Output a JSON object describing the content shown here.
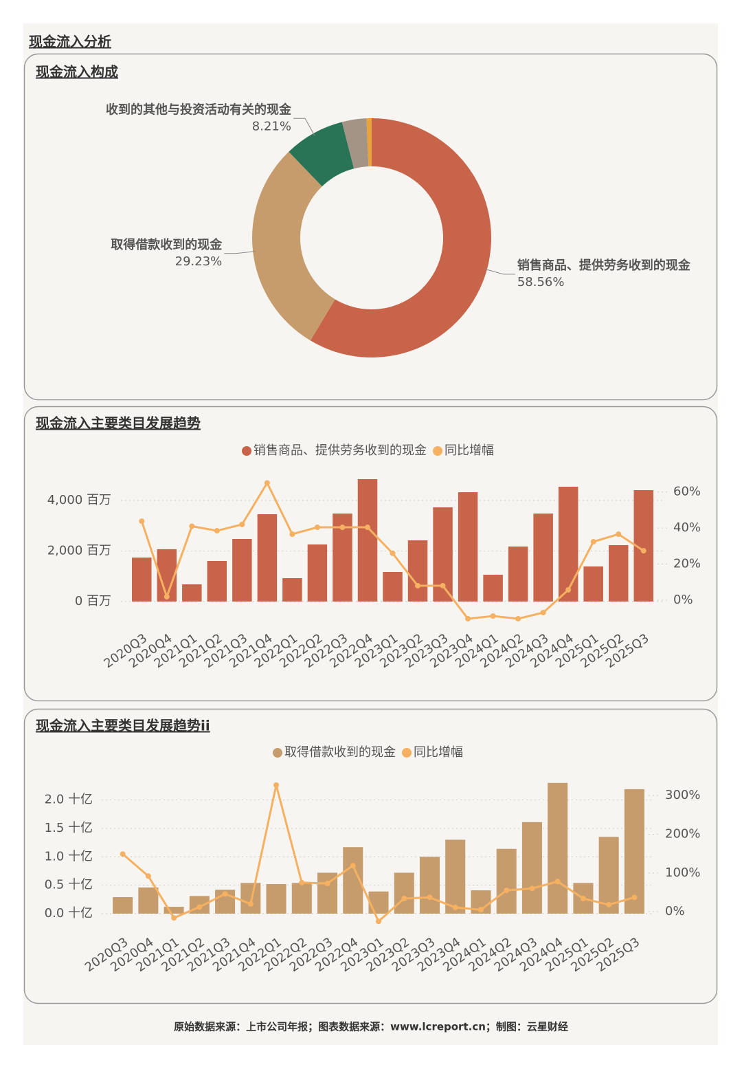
{
  "title": "现金流入分析",
  "chart_data": [
    {
      "type": "pie",
      "title": "现金流入构成",
      "categories": [
        "销售商品、提供劳务收到的现金",
        "取得借款收到的现金",
        "收到的其他与投资活动有关的现金",
        null,
        null
      ],
      "values": [
        58.56,
        29.23,
        8.21,
        3.3,
        0.7
      ],
      "value_labels": [
        "58.56%",
        "29.23%",
        "8.21%",
        null,
        null
      ],
      "colors": [
        "#c8644a",
        "#c69c6d",
        "#2a7456",
        "#a39485",
        "#e8a33d"
      ]
    },
    {
      "type": "combo",
      "title": "现金流入主要类目发展趋势",
      "categories": [
        "2020Q3",
        "2020Q4",
        "2021Q1",
        "2021Q2",
        "2021Q3",
        "2021Q4",
        "2022Q1",
        "2022Q2",
        "2022Q3",
        "2022Q4",
        "2023Q1",
        "2023Q2",
        "2023Q3",
        "2023Q4",
        "2024Q1",
        "2024Q2",
        "2024Q3",
        "2024Q4",
        "2025Q1",
        "2025Q2",
        "2025Q3"
      ],
      "series": [
        {
          "name": "销售商品、提供劳务收到的现金",
          "color": "#c8644a",
          "type": "bar",
          "values": [
            1740,
            2070,
            680,
            1605,
            2476,
            3456,
            925,
            2259,
            3483,
            4844,
            1170,
            2422,
            3728,
            4327,
            1061,
            2177,
            3483,
            4544,
            1388,
            2231,
            4408
          ]
        },
        {
          "name": "同比增幅",
          "color": "#f5b062",
          "type": "line",
          "axis": "y2",
          "values": [
            43.8,
            1.9,
            41,
            38.5,
            42,
            65,
            36.6,
            40.4,
            40.4,
            40.4,
            26,
            8,
            8,
            -10.3,
            -8.8,
            -10.3,
            -6.9,
            5.7,
            32.4,
            36.6,
            27.4
          ]
        }
      ],
      "ylim": [
        0,
        4408
      ],
      "yticks": [
        {
          "value": 0,
          "label": "0 百万"
        },
        {
          "value": 2000,
          "label": "2,000 百万"
        },
        {
          "value": 4000,
          "label": "4,000 百万"
        }
      ],
      "y2lim": [
        -0.76,
        61
      ],
      "y2ticks": [
        {
          "value": 0,
          "label": "0%"
        },
        {
          "value": 20,
          "label": "20%"
        },
        {
          "value": 40,
          "label": "40%"
        },
        {
          "value": 60,
          "label": "60%"
        }
      ],
      "grid": true
    },
    {
      "type": "combo",
      "title": "现金流入主要类目发展趋势ii",
      "categories": [
        "2020Q3",
        "2020Q4",
        "2021Q1",
        "2021Q2",
        "2021Q3",
        "2021Q4",
        "2022Q1",
        "2022Q2",
        "2022Q3",
        "2022Q4",
        "2023Q1",
        "2023Q2",
        "2023Q3",
        "2023Q4",
        "2024Q1",
        "2024Q2",
        "2024Q3",
        "2024Q4",
        "2025Q1",
        "2025Q2",
        "2025Q3"
      ],
      "series": [
        {
          "name": "取得借款收到的现金",
          "color": "#c69c6d",
          "type": "bar",
          "values": [
            0.29,
            0.46,
            0.12,
            0.31,
            0.42,
            0.54,
            0.52,
            0.54,
            0.72,
            1.17,
            0.39,
            0.72,
            1.0,
            1.3,
            0.41,
            1.14,
            1.61,
            2.3,
            0.54,
            1.35,
            2.19
          ]
        },
        {
          "name": "同比增幅",
          "color": "#f5b062",
          "type": "line",
          "axis": "y2",
          "values": [
            149,
            92,
            -16,
            12,
            46,
            20,
            327,
            75,
            73,
            119,
            -25,
            34,
            37,
            11,
            5,
            55,
            60,
            78,
            34,
            18,
            37
          ]
        }
      ],
      "ylim": [
        0,
        2.31
      ],
      "yticks": [
        {
          "value": 0,
          "label": "0.0 十亿"
        },
        {
          "value": 0.5,
          "label": "0.5 十亿"
        },
        {
          "value": 1,
          "label": "1.0 十亿"
        },
        {
          "value": 1.5,
          "label": "1.5 十亿"
        },
        {
          "value": 2,
          "label": "2.0 十亿"
        }
      ],
      "y2lim": [
        -5,
        334
      ],
      "y2ticks": [
        {
          "value": 0,
          "label": "0%"
        },
        {
          "value": 100,
          "label": "100%"
        },
        {
          "value": 200,
          "label": "200%"
        },
        {
          "value": 300,
          "label": "300%"
        }
      ],
      "grid": true
    }
  ],
  "source": "原始数据来源：上市公司年报；图表数据来源：www.lcreport.cn；制图：云星财经"
}
